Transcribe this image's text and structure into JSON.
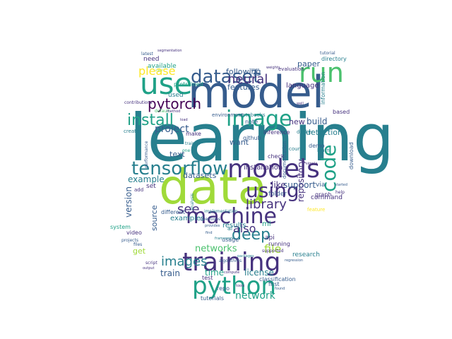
{
  "palette": {
    "dark_purple": "#46327e",
    "blue": "#365c8d",
    "teal_blue": "#277f8e",
    "teal": "#1fa187",
    "green": "#4ac16d",
    "lime": "#a0da39",
    "yellow": "#fde725",
    "purple": "#440154"
  },
  "words": {
    "learning": "learning",
    "model": "model",
    "data": "data",
    "models": "models",
    "use": "use",
    "machine": "machine",
    "training": "training",
    "python": "python",
    "dataset": "dataset",
    "image": "image",
    "code": "code",
    "run": "run",
    "tensorflow": "tensorflow",
    "install": "install",
    "using": "using",
    "deep": "deep",
    "pytorch": "pytorch",
    "please": "please",
    "neural": "neural",
    "images": "images",
    "library": "library",
    "see": "see",
    "also": "also",
    "project": "project",
    "networks": "networks",
    "network": "network",
    "file": "file",
    "version": "version",
    "example": "example",
    "support": "support",
    "build": "build",
    "detection": "detection",
    "license": "license",
    "repository": "repository",
    "examples": "examples",
    "datasets": "datasets",
    "installation": "installation",
    "following": "following",
    "features": "features",
    "paper": "paper",
    "language": "language",
    "source": "source",
    "text": "text",
    "want": "want",
    "like": "like",
    "new": "new",
    "time": "time",
    "train": "train",
    "get": "get",
    "results": "results",
    "available": "available",
    "used": "used",
    "pretrained": "pretrained",
    "need": "need",
    "video": "video",
    "system": "system",
    "command": "command",
    "research": "research",
    "classification": "classification",
    "api": "api",
    "running": "running",
    "first": "first",
    "folder": "folder",
    "via": "via",
    "graph": "graph",
    "different": "different",
    "test": "test",
    "repo": "repo",
    "tutorials": "tutorials",
    "ml": "ml",
    "usage": "usage",
    "ai": "ai",
    "github": "github",
    "demo": "demo",
    "note": "note",
    "check": "check",
    "inference": "inference",
    "make": "make",
    "environment": "environment",
    "notebooks": "notebooks",
    "based": "based",
    "information": "information",
    "documentation": "documentation",
    "download": "download",
    "evaluation": "evaluation",
    "directory": "directory",
    "tutorial": "tutorial",
    "latest": "latest",
    "docker": "docker",
    "learn": "learn",
    "course": "course",
    "feature": "feature",
    "add": "add",
    "set": "set",
    "projects": "projects",
    "trained": "trained",
    "analysis": "analysis",
    "contributions": "contributions",
    "implementation": "implementation",
    "questions": "questions",
    "provides": "provides",
    "algorithms": "algorithms",
    "supported": "supported",
    "compute": "compute",
    "weights": "weights",
    "regression": "regression",
    "segmentation": "segmentation",
    "found": "found",
    "started": "started",
    "help": "help",
    "script": "script",
    "output": "output",
    "packages": "packages",
    "default": "default",
    "method": "method",
    "one": "one",
    "tools": "tools",
    "create": "create",
    "well": "well",
    "simple": "simple",
    "find": "find",
    "framework": "framework",
    "open": "open",
    "user": "user",
    "load": "load",
    "input": "input",
    "performance": "performance",
    "files": "files"
  }
}
